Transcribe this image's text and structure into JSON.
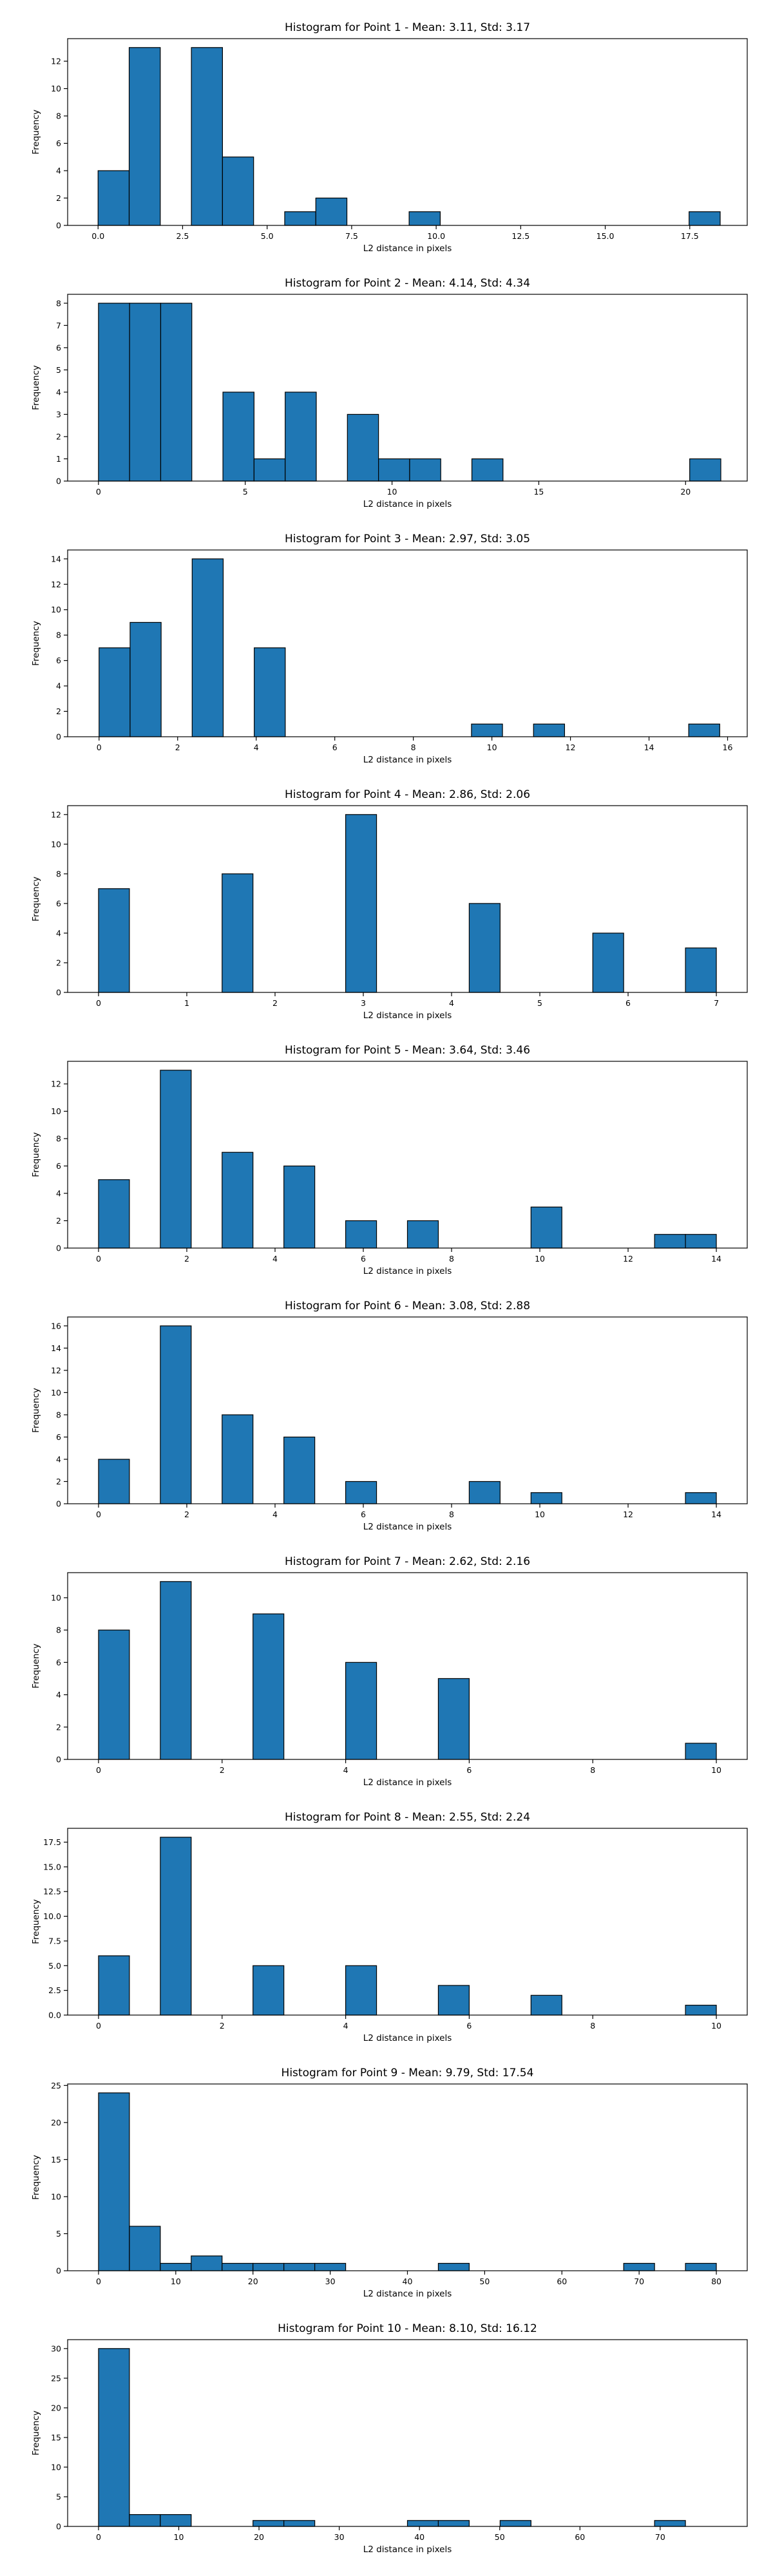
{
  "chart_data": [
    {
      "type": "bar",
      "title": "Histogram for Point 1 - Mean: 3.11, Std: 3.17",
      "xlabel": "L2 distance in pixels",
      "ylabel": "Frequency",
      "xlim": [
        -0.9,
        19.2
      ],
      "ylim": [
        0,
        13.65
      ],
      "bin_width": 0.92,
      "bars": [
        {
          "x": 0.0,
          "count": 4
        },
        {
          "x": 0.92,
          "count": 13
        },
        {
          "x": 2.76,
          "count": 13
        },
        {
          "x": 3.68,
          "count": 5
        },
        {
          "x": 5.52,
          "count": 1
        },
        {
          "x": 6.44,
          "count": 2
        },
        {
          "x": 9.2,
          "count": 1
        },
        {
          "x": 17.48,
          "count": 1
        }
      ],
      "xticks": [
        0.0,
        2.5,
        5.0,
        7.5,
        10.0,
        12.5,
        15.0,
        17.5
      ],
      "xtick_labels": [
        "0.0",
        "2.5",
        "5.0",
        "7.5",
        "10.0",
        "12.5",
        "15.0",
        "17.5"
      ],
      "yticks": [
        0,
        2,
        4,
        6,
        8,
        10,
        12
      ],
      "ytick_labels": [
        "0",
        "2",
        "4",
        "6",
        "8",
        "10",
        "12"
      ]
    },
    {
      "type": "bar",
      "title": "Histogram for Point 2 - Mean: 4.14, Std: 4.34",
      "xlabel": "L2 distance in pixels",
      "ylabel": "Frequency",
      "xlim": [
        -1.05,
        22.1
      ],
      "ylim": [
        0,
        8.4
      ],
      "bin_width": 1.06,
      "bars": [
        {
          "x": 0.0,
          "count": 8
        },
        {
          "x": 1.06,
          "count": 8
        },
        {
          "x": 2.12,
          "count": 8
        },
        {
          "x": 4.24,
          "count": 4
        },
        {
          "x": 5.3,
          "count": 1
        },
        {
          "x": 6.36,
          "count": 4
        },
        {
          "x": 8.48,
          "count": 3
        },
        {
          "x": 9.54,
          "count": 1
        },
        {
          "x": 10.6,
          "count": 1
        },
        {
          "x": 12.72,
          "count": 1
        },
        {
          "x": 20.14,
          "count": 1
        }
      ],
      "xticks": [
        0,
        5,
        10,
        15,
        20
      ],
      "xtick_labels": [
        "0",
        "5",
        "10",
        "15",
        "20"
      ],
      "yticks": [
        0,
        1,
        2,
        3,
        4,
        5,
        6,
        7,
        8
      ],
      "ytick_labels": [
        "0",
        "1",
        "2",
        "3",
        "4",
        "5",
        "6",
        "7",
        "8"
      ]
    },
    {
      "type": "bar",
      "title": "Histogram for Point 3 - Mean: 2.97, Std: 3.05",
      "xlabel": "L2 distance in pixels",
      "ylabel": "Frequency",
      "xlim": [
        -0.8,
        16.5
      ],
      "ylim": [
        0,
        14.7
      ],
      "bin_width": 0.79,
      "bars": [
        {
          "x": 0.0,
          "count": 7
        },
        {
          "x": 0.79,
          "count": 9
        },
        {
          "x": 2.37,
          "count": 14
        },
        {
          "x": 3.95,
          "count": 7
        },
        {
          "x": 9.48,
          "count": 1
        },
        {
          "x": 11.06,
          "count": 1
        },
        {
          "x": 15.01,
          "count": 1
        }
      ],
      "xticks": [
        0,
        2,
        4,
        6,
        8,
        10,
        12,
        14,
        16
      ],
      "xtick_labels": [
        "0",
        "2",
        "4",
        "6",
        "8",
        "10",
        "12",
        "14",
        "16"
      ],
      "yticks": [
        0,
        2,
        4,
        6,
        8,
        10,
        12,
        14
      ],
      "ytick_labels": [
        "0",
        "2",
        "4",
        "6",
        "8",
        "10",
        "12",
        "14"
      ]
    },
    {
      "type": "bar",
      "title": "Histogram for Point 4 - Mean: 2.86, Std: 2.06",
      "xlabel": "L2 distance in pixels",
      "ylabel": "Frequency",
      "xlim": [
        -0.35,
        7.35
      ],
      "ylim": [
        0,
        12.6
      ],
      "bin_width": 0.35,
      "bars": [
        {
          "x": 0.0,
          "count": 7
        },
        {
          "x": 1.4,
          "count": 8
        },
        {
          "x": 2.8,
          "count": 12
        },
        {
          "x": 4.2,
          "count": 6
        },
        {
          "x": 5.6,
          "count": 4
        },
        {
          "x": 6.65,
          "count": 3
        }
      ],
      "xticks": [
        0,
        1,
        2,
        3,
        4,
        5,
        6,
        7
      ],
      "xtick_labels": [
        "0",
        "1",
        "2",
        "3",
        "4",
        "5",
        "6",
        "7"
      ],
      "yticks": [
        0,
        2,
        4,
        6,
        8,
        10,
        12
      ],
      "ytick_labels": [
        "0",
        "2",
        "4",
        "6",
        "8",
        "10",
        "12"
      ]
    },
    {
      "type": "bar",
      "title": "Histogram for Point 5 - Mean: 3.64, Std: 3.46",
      "xlabel": "L2 distance in pixels",
      "ylabel": "Frequency",
      "xlim": [
        -0.7,
        14.7
      ],
      "ylim": [
        0,
        13.65
      ],
      "bin_width": 0.7,
      "bars": [
        {
          "x": 0.0,
          "count": 5
        },
        {
          "x": 1.4,
          "count": 13
        },
        {
          "x": 2.8,
          "count": 7
        },
        {
          "x": 4.2,
          "count": 6
        },
        {
          "x": 5.6,
          "count": 2
        },
        {
          "x": 7.0,
          "count": 2
        },
        {
          "x": 9.8,
          "count": 3
        },
        {
          "x": 12.6,
          "count": 1
        },
        {
          "x": 13.3,
          "count": 1
        }
      ],
      "xticks": [
        0,
        2,
        4,
        6,
        8,
        10,
        12,
        14
      ],
      "xtick_labels": [
        "0",
        "2",
        "4",
        "6",
        "8",
        "10",
        "12",
        "14"
      ],
      "yticks": [
        0,
        2,
        4,
        6,
        8,
        10,
        12
      ],
      "ytick_labels": [
        "0",
        "2",
        "4",
        "6",
        "8",
        "10",
        "12"
      ]
    },
    {
      "type": "bar",
      "title": "Histogram for Point 6 - Mean: 3.08, Std: 2.88",
      "xlabel": "L2 distance in pixels",
      "ylabel": "Frequency",
      "xlim": [
        -0.7,
        14.7
      ],
      "ylim": [
        0,
        16.8
      ],
      "bin_width": 0.7,
      "bars": [
        {
          "x": 0.0,
          "count": 4
        },
        {
          "x": 1.4,
          "count": 16
        },
        {
          "x": 2.8,
          "count": 8
        },
        {
          "x": 4.2,
          "count": 6
        },
        {
          "x": 5.6,
          "count": 2
        },
        {
          "x": 8.4,
          "count": 2
        },
        {
          "x": 9.8,
          "count": 1
        },
        {
          "x": 13.3,
          "count": 1
        }
      ],
      "xticks": [
        0,
        2,
        4,
        6,
        8,
        10,
        12,
        14
      ],
      "xtick_labels": [
        "0",
        "2",
        "4",
        "6",
        "8",
        "10",
        "12",
        "14"
      ],
      "yticks": [
        0,
        2,
        4,
        6,
        8,
        10,
        12,
        14,
        16
      ],
      "ytick_labels": [
        "0",
        "2",
        "4",
        "6",
        "8",
        "10",
        "12",
        "14",
        "16"
      ]
    },
    {
      "type": "bar",
      "title": "Histogram for Point 7 - Mean: 2.62, Std: 2.16",
      "xlabel": "L2 distance in pixels",
      "ylabel": "Frequency",
      "xlim": [
        -0.5,
        10.5
      ],
      "ylim": [
        0,
        11.55
      ],
      "bin_width": 0.5,
      "bars": [
        {
          "x": 0.0,
          "count": 8
        },
        {
          "x": 1.0,
          "count": 11
        },
        {
          "x": 2.5,
          "count": 9
        },
        {
          "x": 4.0,
          "count": 6
        },
        {
          "x": 5.5,
          "count": 5
        },
        {
          "x": 9.5,
          "count": 1
        }
      ],
      "xticks": [
        0,
        2,
        4,
        6,
        8,
        10
      ],
      "xtick_labels": [
        "0",
        "2",
        "4",
        "6",
        "8",
        "10"
      ],
      "yticks": [
        0,
        2,
        4,
        6,
        8,
        10
      ],
      "ytick_labels": [
        "0",
        "2",
        "4",
        "6",
        "8",
        "10"
      ]
    },
    {
      "type": "bar",
      "title": "Histogram for Point 8 - Mean: 2.55, Std: 2.24",
      "xlabel": "L2 distance in pixels",
      "ylabel": "Frequency",
      "xlim": [
        -0.5,
        10.5
      ],
      "ylim": [
        0,
        18.9
      ],
      "bin_width": 0.5,
      "bars": [
        {
          "x": 0.0,
          "count": 6
        },
        {
          "x": 1.0,
          "count": 18
        },
        {
          "x": 2.5,
          "count": 5
        },
        {
          "x": 4.0,
          "count": 5
        },
        {
          "x": 5.5,
          "count": 3
        },
        {
          "x": 7.0,
          "count": 2
        },
        {
          "x": 9.5,
          "count": 1
        }
      ],
      "xticks": [
        0,
        2,
        4,
        6,
        8,
        10
      ],
      "xtick_labels": [
        "0",
        "2",
        "4",
        "6",
        "8",
        "10"
      ],
      "yticks": [
        0.0,
        2.5,
        5.0,
        7.5,
        10.0,
        12.5,
        15.0,
        17.5
      ],
      "ytick_labels": [
        "0.0",
        "2.5",
        "5.0",
        "7.5",
        "10.0",
        "12.5",
        "15.0",
        "17.5"
      ]
    },
    {
      "type": "bar",
      "title": "Histogram for Point 9 - Mean: 9.79, Std: 17.54",
      "xlabel": "L2 distance in pixels",
      "ylabel": "Frequency",
      "xlim": [
        -4.0,
        84.0
      ],
      "ylim": [
        0,
        25.2
      ],
      "bin_width": 4.0,
      "bars": [
        {
          "x": 0.0,
          "count": 24
        },
        {
          "x": 4.0,
          "count": 6
        },
        {
          "x": 8.0,
          "count": 1
        },
        {
          "x": 12.0,
          "count": 2
        },
        {
          "x": 16.0,
          "count": 1
        },
        {
          "x": 20.0,
          "count": 1
        },
        {
          "x": 24.0,
          "count": 1
        },
        {
          "x": 28.0,
          "count": 1
        },
        {
          "x": 44.0,
          "count": 1
        },
        {
          "x": 68.0,
          "count": 1
        },
        {
          "x": 76.0,
          "count": 1
        }
      ],
      "xticks": [
        0,
        10,
        20,
        30,
        40,
        50,
        60,
        70,
        80
      ],
      "xtick_labels": [
        "0",
        "10",
        "20",
        "30",
        "40",
        "50",
        "60",
        "70",
        "80"
      ],
      "yticks": [
        0,
        5,
        10,
        15,
        20,
        25
      ],
      "ytick_labels": [
        "0",
        "5",
        "10",
        "15",
        "20",
        "25"
      ]
    },
    {
      "type": "bar",
      "title": "Histogram for Point 10 - Mean: 8.10, Std: 16.12",
      "xlabel": "L2 distance in pixels",
      "ylabel": "Frequency",
      "xlim": [
        -3.85,
        80.85
      ],
      "ylim": [
        0,
        31.5
      ],
      "bin_width": 3.85,
      "bars": [
        {
          "x": 0.0,
          "count": 30
        },
        {
          "x": 3.85,
          "count": 2
        },
        {
          "x": 7.7,
          "count": 2
        },
        {
          "x": 19.25,
          "count": 1
        },
        {
          "x": 23.1,
          "count": 1
        },
        {
          "x": 38.5,
          "count": 1
        },
        {
          "x": 42.35,
          "count": 1
        },
        {
          "x": 50.05,
          "count": 1
        },
        {
          "x": 69.3,
          "count": 1
        }
      ],
      "xticks": [
        0,
        10,
        20,
        30,
        40,
        50,
        60,
        70
      ],
      "xtick_labels": [
        "0",
        "10",
        "20",
        "30",
        "40",
        "50",
        "60",
        "70"
      ],
      "yticks": [
        0,
        5,
        10,
        15,
        20,
        25,
        30
      ],
      "ytick_labels": [
        "0",
        "5",
        "10",
        "15",
        "20",
        "25",
        "30"
      ]
    }
  ]
}
